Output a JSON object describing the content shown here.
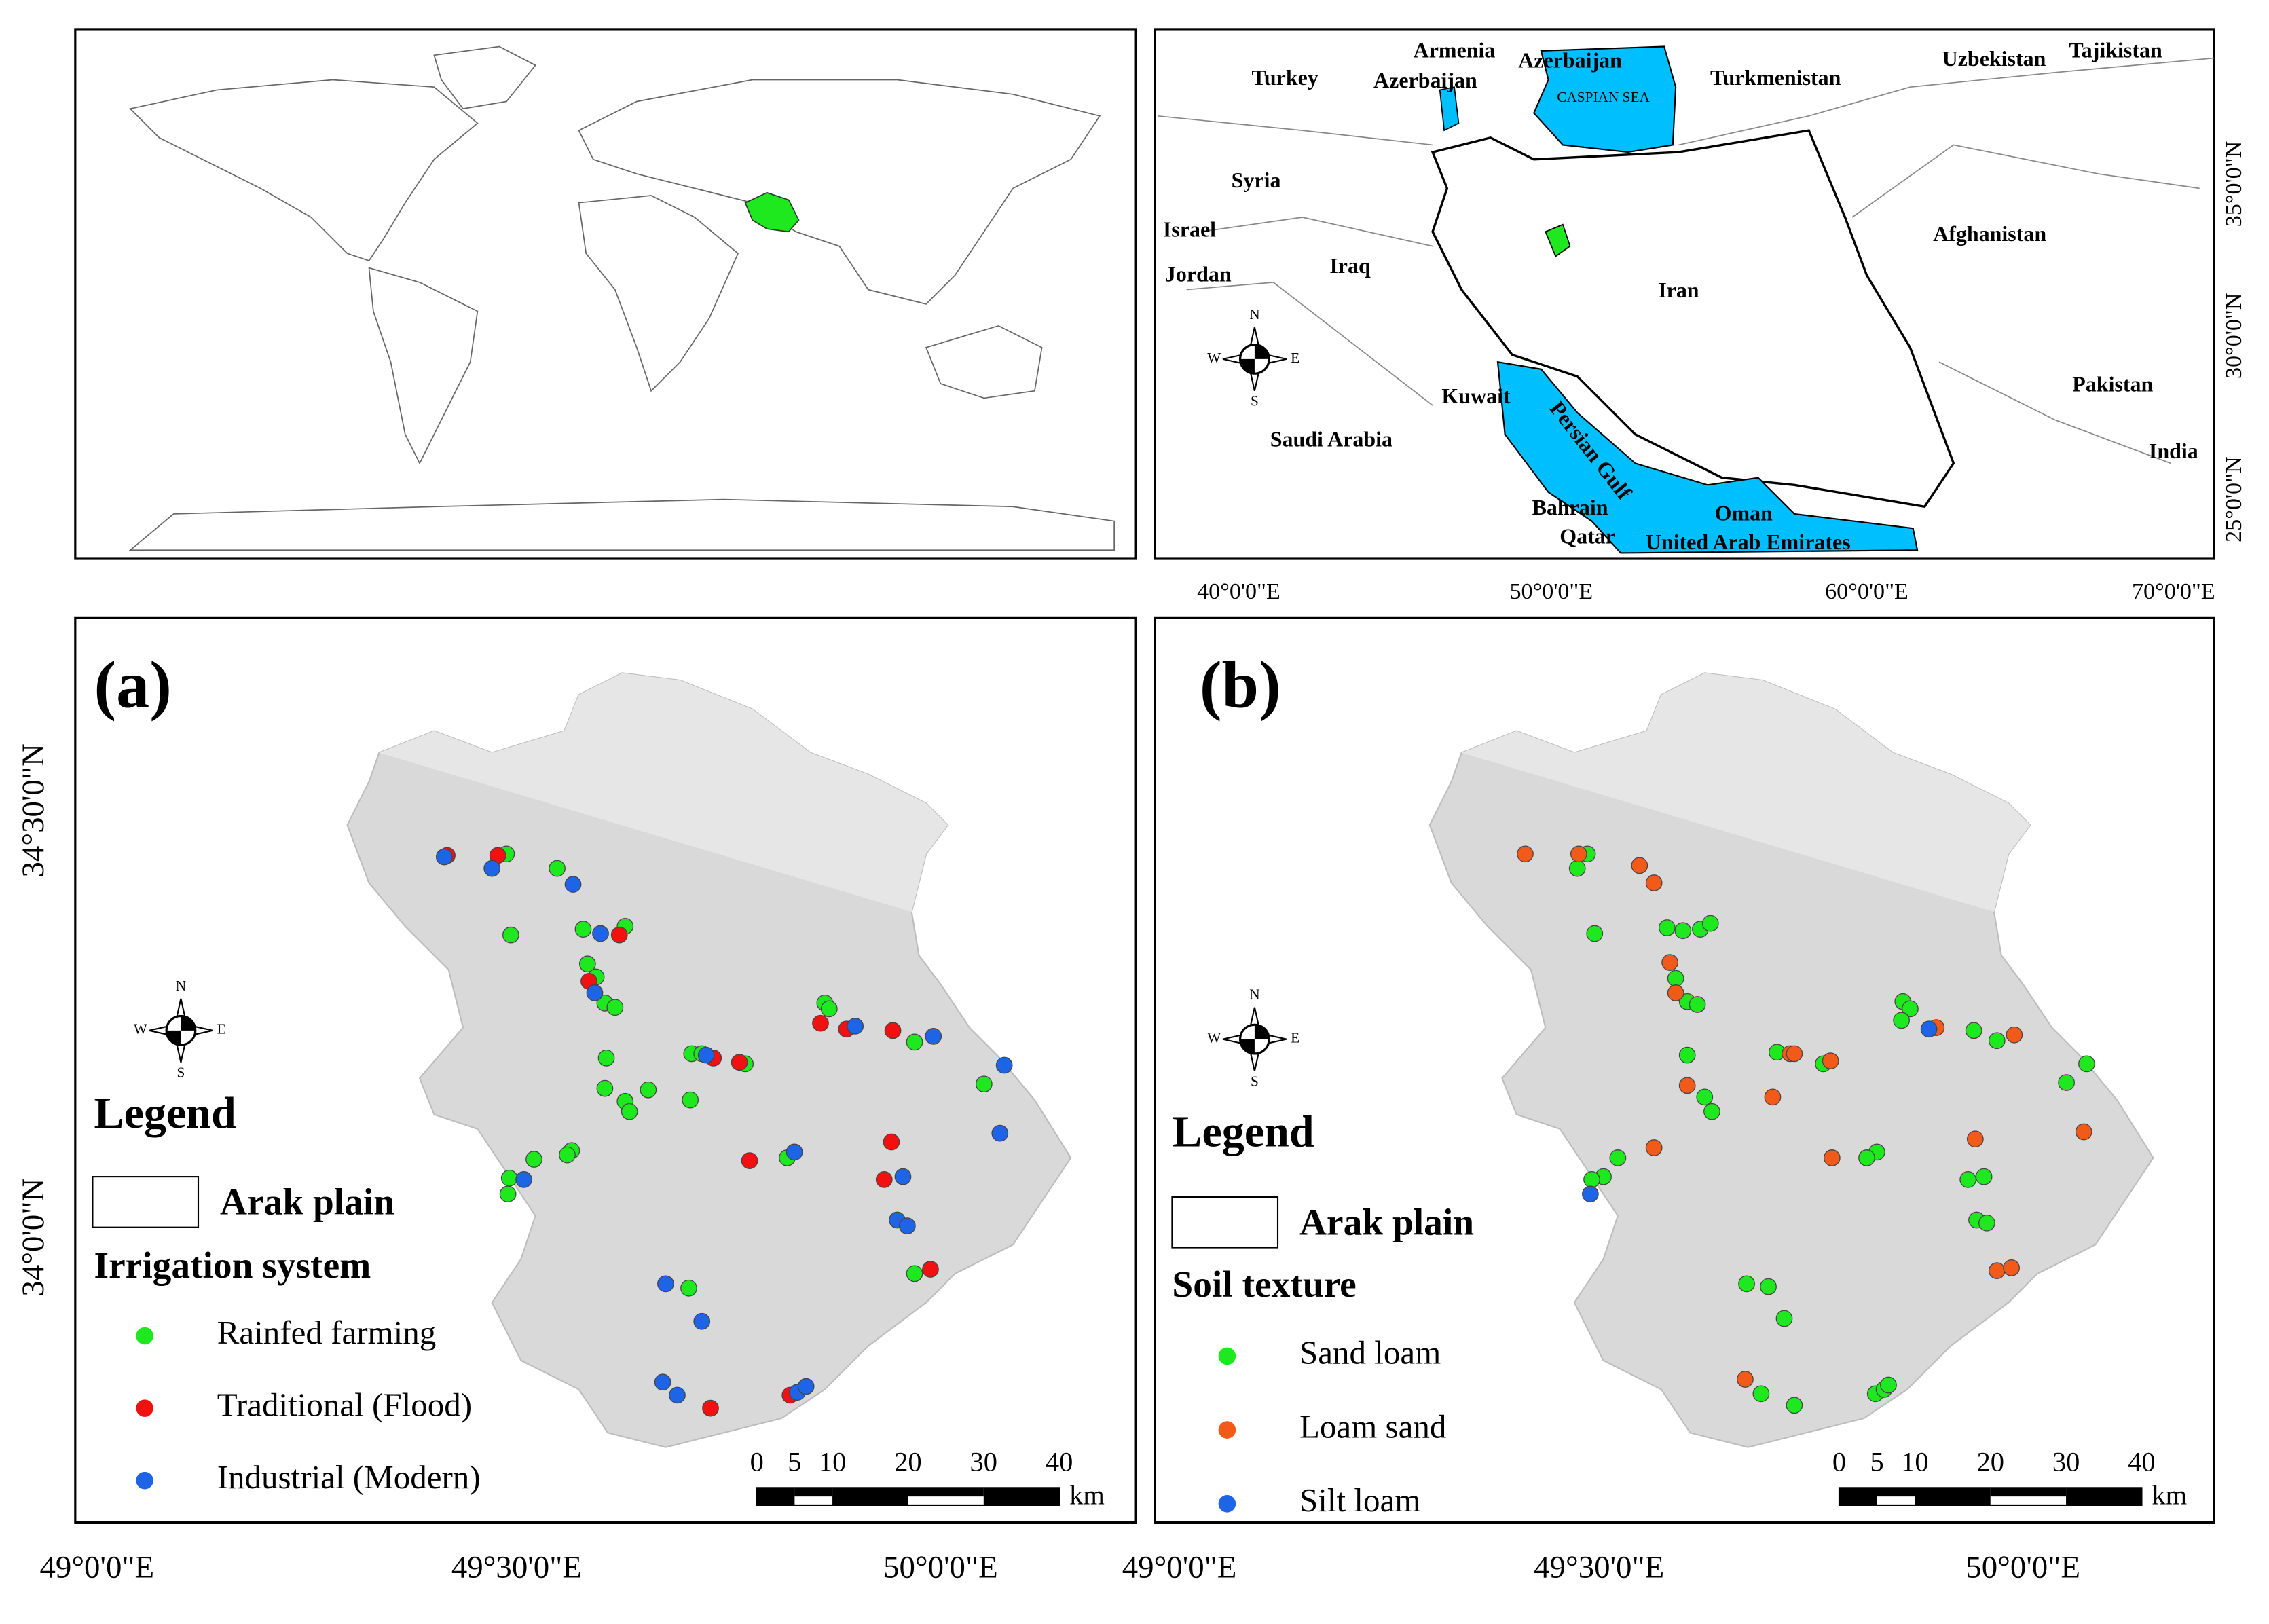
{
  "location_map": {
    "country_labels": [
      "Armenia",
      "Azerbaijan",
      "Azerbaijan",
      "Turkey",
      "Turkmenistan",
      "Uzbekistan",
      "Tajikistan",
      "Syria",
      "Israel",
      "Jordan",
      "Iraq",
      "Iran",
      "Afghanistan",
      "Kuwait",
      "Saudi Arabia",
      "Pakistan",
      "India",
      "Bahrain",
      "Qatar",
      "Oman",
      "United Arab Emirates"
    ],
    "water_labels": [
      "CASPIAN SEA",
      "Persian Gulf"
    ],
    "lon_ticks": [
      "40°0'0\"E",
      "50°0'0\"E",
      "60°0'0\"E",
      "70°0'0\"E"
    ],
    "lat_ticks": [
      "35°0'0\"N",
      "30°0'0\"N",
      "25°0'0\"N"
    ],
    "compass": [
      "N",
      "S",
      "E",
      "W"
    ]
  },
  "panels": [
    {
      "label": "(a)",
      "legend_title": "Legend",
      "boundary_label": "Arak plain",
      "group_title": "Irrigation system",
      "items": [
        {
          "name": "Rainfed farming",
          "color": "#1ee81e"
        },
        {
          "name": "Traditional (Flood)",
          "color": "#f21010"
        },
        {
          "name": "Industrial (Modern)",
          "color": "#1e64e6"
        }
      ],
      "scale_ticks": [
        0,
        5,
        10,
        20,
        30,
        40
      ],
      "scale_unit": "km",
      "compass": [
        "N",
        "S",
        "E",
        "W"
      ],
      "lon_ticks": [
        "49°0'0\"E",
        "49°30'0\"E",
        "50°0'0\"E"
      ],
      "lat_ticks": [
        "34°30'0\"N",
        "34°0'0\"N"
      ]
    },
    {
      "label": "(b)",
      "legend_title": "Legend",
      "boundary_label": "Arak plain",
      "group_title": "Soil texture",
      "items": [
        {
          "name": "Sand loam",
          "color": "#1ee81e"
        },
        {
          "name": "Loam sand",
          "color": "#f25a1a"
        },
        {
          "name": "Silt loam",
          "color": "#1e64e6"
        }
      ],
      "scale_ticks": [
        0,
        5,
        10,
        20,
        30,
        40
      ],
      "scale_unit": "km",
      "compass": [
        "N",
        "S",
        "E",
        "W"
      ],
      "lon_ticks": [
        "49°0'0\"E",
        "49°30'0\"E",
        "50°0'0\"E"
      ]
    }
  ]
}
